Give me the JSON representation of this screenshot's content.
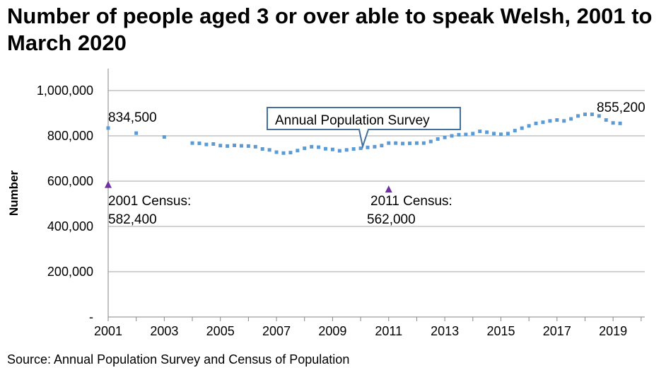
{
  "title": "Number of people aged 3 or over able to speak Welsh, 2001 to March 2020",
  "source": "Source: Annual Population Survey and Census of Population",
  "chart_data": {
    "type": "scatter",
    "title": "Number of people aged 3 or over able to speak Welsh, 2001 to March 2020",
    "xlabel": "",
    "ylabel": "Number",
    "xlim": [
      2001,
      2020
    ],
    "ylim": [
      0,
      1000000
    ],
    "x_ticks": [
      "2001",
      "2003",
      "2005",
      "2007",
      "2009",
      "2011",
      "2013",
      "2015",
      "2017",
      "2019"
    ],
    "y_ticks": [
      {
        "value": 0,
        "label": "-"
      },
      {
        "value": 200000,
        "label": "200,000"
      },
      {
        "value": 400000,
        "label": "400,000"
      },
      {
        "value": 600000,
        "label": "600,000"
      },
      {
        "value": 800000,
        "label": "800,000"
      },
      {
        "value": 1000000,
        "label": "1,000,000"
      }
    ],
    "grid": true,
    "series": [
      {
        "name": "Annual Population Survey",
        "color": "#5b9bd5",
        "marker": "square",
        "points": [
          [
            2001.0,
            834500
          ],
          [
            2002.0,
            812000
          ],
          [
            2003.0,
            795000
          ],
          [
            2004.0,
            768000
          ],
          [
            2004.25,
            767000
          ],
          [
            2004.5,
            762000
          ],
          [
            2004.75,
            764000
          ],
          [
            2005.0,
            757000
          ],
          [
            2005.25,
            755000
          ],
          [
            2005.5,
            758000
          ],
          [
            2005.75,
            756000
          ],
          [
            2006.0,
            755000
          ],
          [
            2006.25,
            752000
          ],
          [
            2006.5,
            742000
          ],
          [
            2006.75,
            738000
          ],
          [
            2007.0,
            728000
          ],
          [
            2007.25,
            724000
          ],
          [
            2007.5,
            726000
          ],
          [
            2007.75,
            735000
          ],
          [
            2008.0,
            745000
          ],
          [
            2008.25,
            752000
          ],
          [
            2008.5,
            750000
          ],
          [
            2008.75,
            743000
          ],
          [
            2009.0,
            740000
          ],
          [
            2009.25,
            734000
          ],
          [
            2009.5,
            738000
          ],
          [
            2009.75,
            742000
          ],
          [
            2010.0,
            745000
          ],
          [
            2010.25,
            749000
          ],
          [
            2010.5,
            752000
          ],
          [
            2010.75,
            757000
          ],
          [
            2011.0,
            768000
          ],
          [
            2011.25,
            768000
          ],
          [
            2011.5,
            766000
          ],
          [
            2011.75,
            767000
          ],
          [
            2012.0,
            768000
          ],
          [
            2012.25,
            768000
          ],
          [
            2012.5,
            775000
          ],
          [
            2012.75,
            786000
          ],
          [
            2013.0,
            793000
          ],
          [
            2013.25,
            800000
          ],
          [
            2013.5,
            805000
          ],
          [
            2013.75,
            806000
          ],
          [
            2014.0,
            810000
          ],
          [
            2014.25,
            820000
          ],
          [
            2014.5,
            816000
          ],
          [
            2014.75,
            810000
          ],
          [
            2015.0,
            807000
          ],
          [
            2015.25,
            810000
          ],
          [
            2015.5,
            823000
          ],
          [
            2015.75,
            834000
          ],
          [
            2016.0,
            844000
          ],
          [
            2016.25,
            855000
          ],
          [
            2016.5,
            860000
          ],
          [
            2016.75,
            866000
          ],
          [
            2017.0,
            870000
          ],
          [
            2017.25,
            866000
          ],
          [
            2017.5,
            875000
          ],
          [
            2017.75,
            888000
          ],
          [
            2018.0,
            895000
          ],
          [
            2018.25,
            895000
          ],
          [
            2018.5,
            888000
          ],
          [
            2018.75,
            870000
          ],
          [
            2019.0,
            857000
          ],
          [
            2019.25,
            855200
          ]
        ]
      },
      {
        "name": "Census",
        "color": "#7030a0",
        "marker": "triangle",
        "points": [
          [
            2001.0,
            582400
          ],
          [
            2011.0,
            562000
          ]
        ]
      }
    ],
    "annotations": {
      "first_value": "834,500",
      "last_value": "855,200",
      "aps_label": "Annual Population Survey",
      "census_2001_line1": "2001 Census:",
      "census_2001_line2": "582,400",
      "census_2011_line1": "2011 Census:",
      "census_2011_line2": "562,000"
    }
  }
}
